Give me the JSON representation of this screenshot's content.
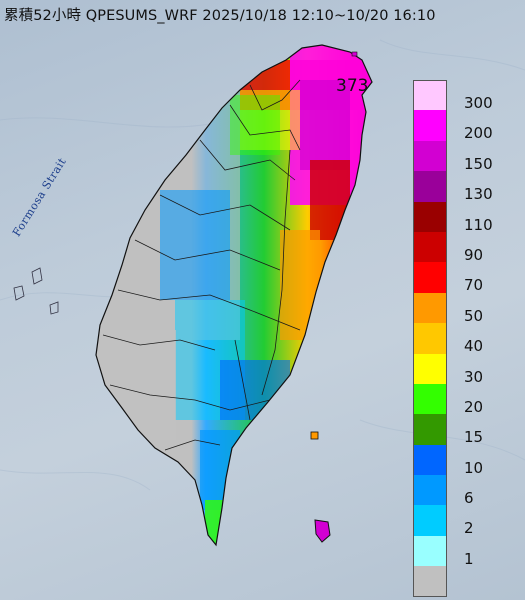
{
  "title": "累積52小時 QPESUMS_WRF 2025/10/18 12:10~10/20 16:10",
  "strait_label": "Formosa Strait",
  "max_value": "373",
  "legend": [
    {
      "label": "300",
      "color": "#ffc8ff"
    },
    {
      "label": "200",
      "color": "#ff00ff"
    },
    {
      "label": "150",
      "color": "#d200d2"
    },
    {
      "label": "130",
      "color": "#9a009a"
    },
    {
      "label": "110",
      "color": "#9a0000"
    },
    {
      "label": "90",
      "color": "#cc0000"
    },
    {
      "label": "70",
      "color": "#ff0000"
    },
    {
      "label": "50",
      "color": "#ff9900"
    },
    {
      "label": "40",
      "color": "#ffc800"
    },
    {
      "label": "30",
      "color": "#ffff00"
    },
    {
      "label": "20",
      "color": "#33ff00"
    },
    {
      "label": "15",
      "color": "#339900"
    },
    {
      "label": "10",
      "color": "#0066ff"
    },
    {
      "label": "6",
      "color": "#0099ff"
    },
    {
      "label": "2",
      "color": "#00ccff"
    },
    {
      "label": "1",
      "color": "#99ffff"
    },
    {
      "label": "",
      "color": "#c0c0c0"
    }
  ]
}
